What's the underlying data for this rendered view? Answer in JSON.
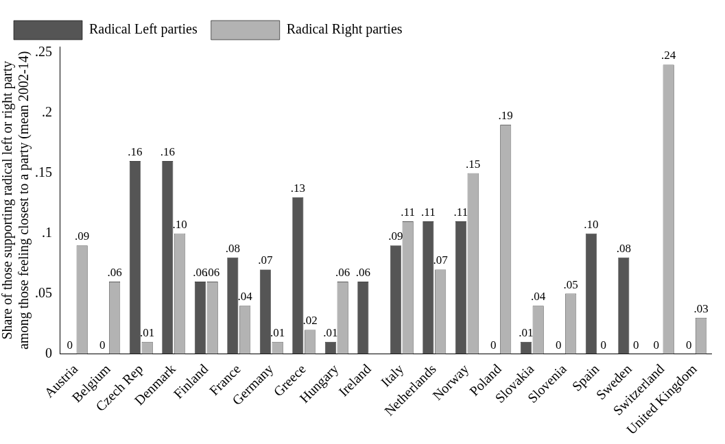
{
  "chart_data": {
    "type": "bar",
    "ylabel": "Share of those supporting radical left or right party\namong those feeling closest to a party (mean 2002-14)",
    "categories": [
      "Austria",
      "Belgium",
      "Czech Rep",
      "Denmark",
      "Finland",
      "France",
      "Germany",
      "Greece",
      "Hungary",
      "Ireland",
      "Italy",
      "Netherlands",
      "Norway",
      "Poland",
      "Slovakia",
      "Slovenia",
      "Spain",
      "Sweden",
      "Switzerland",
      "United Kingdom"
    ],
    "series": [
      {
        "name": "Radical Left parties",
        "color": "#555555",
        "values": [
          0,
          0,
          0.16,
          0.16,
          0.06,
          0.08,
          0.07,
          0.13,
          0.01,
          0.06,
          0.09,
          0.11,
          0.11,
          0,
          0.01,
          0,
          0.1,
          0.08,
          0,
          0
        ],
        "value_labels": [
          "0",
          "0",
          ".16",
          ".16",
          ".06",
          ".08",
          ".07",
          ".13",
          ".01",
          ".06",
          ".09",
          ".11",
          ".11",
          "0",
          ".01",
          "0",
          ".10",
          ".08",
          "0",
          "0"
        ]
      },
      {
        "name": "Radical Right parties",
        "color": "#b3b3b3",
        "values": [
          0.09,
          0.06,
          0.01,
          0.1,
          0.06,
          0.04,
          0.01,
          0.02,
          0.06,
          0,
          0.11,
          0.07,
          0.15,
          0.19,
          0.04,
          0.05,
          0,
          0,
          0.24,
          0.03
        ],
        "value_labels": [
          ".09",
          ".06",
          ".01",
          ".10",
          ".06",
          ".04",
          ".01",
          ".02",
          ".06",
          null,
          ".11",
          ".07",
          ".15",
          ".19",
          ".04",
          ".05",
          "0",
          "0",
          ".24",
          ".03"
        ]
      }
    ],
    "ylim": [
      0,
      0.255
    ],
    "yticks": [
      {
        "value": 0,
        "label": "0"
      },
      {
        "value": 0.05,
        "label": ".05"
      },
      {
        "value": 0.1,
        "label": ".1"
      },
      {
        "value": 0.15,
        "label": ".15"
      },
      {
        "value": 0.2,
        "label": ".2"
      },
      {
        "value": 0.25,
        "label": ".25"
      }
    ],
    "grid": false,
    "legend": "top"
  }
}
